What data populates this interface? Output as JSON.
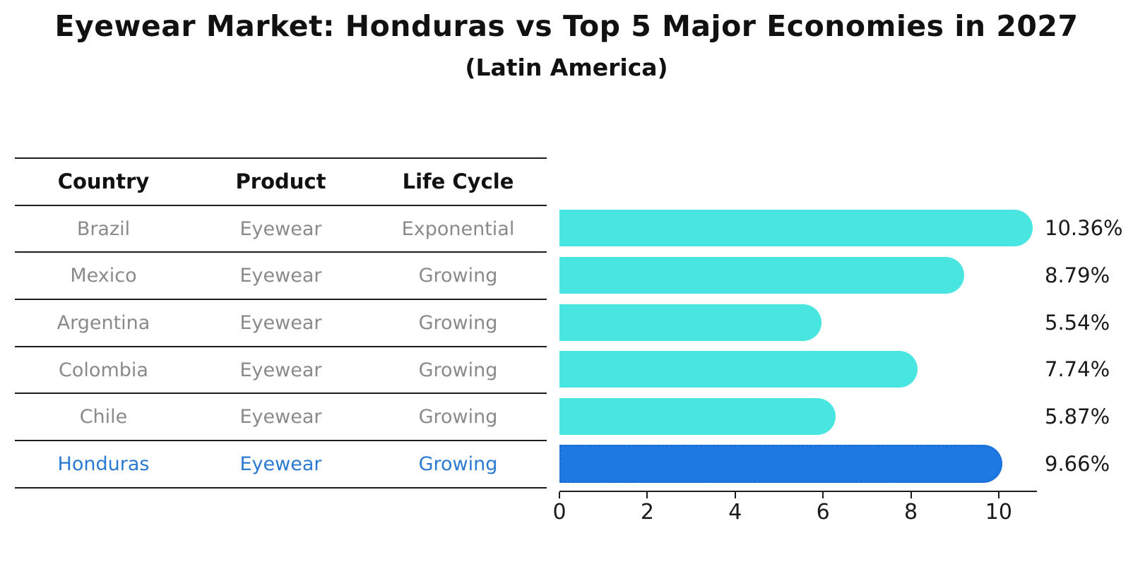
{
  "title": "Eyewear Market: Honduras vs Top 5 Major Economies in 2027",
  "subtitle": "(Latin America)",
  "table": {
    "headers": [
      "Country",
      "Product",
      "Life Cycle"
    ],
    "rows": [
      {
        "country": "Brazil",
        "product": "Eyewear",
        "life_cycle": "Exponential"
      },
      {
        "country": "Mexico",
        "product": "Eyewear",
        "life_cycle": "Growing"
      },
      {
        "country": "Argentina",
        "product": "Eyewear",
        "life_cycle": "Growing"
      },
      {
        "country": "Colombia",
        "product": "Eyewear",
        "life_cycle": "Growing"
      },
      {
        "country": "Chile",
        "product": "Eyewear",
        "life_cycle": "Growing"
      },
      {
        "country": "Honduras",
        "product": "Eyewear",
        "life_cycle": "Growing"
      }
    ],
    "highlight_row": "Honduras"
  },
  "chart_data": {
    "type": "bar",
    "orientation": "horizontal",
    "categories": [
      "Brazil",
      "Mexico",
      "Argentina",
      "Colombia",
      "Chile",
      "Honduras"
    ],
    "values": [
      10.36,
      8.79,
      5.54,
      7.74,
      5.87,
      9.66
    ],
    "value_labels": [
      "10.36%",
      "8.79%",
      "5.54%",
      "7.74%",
      "5.87%",
      "9.66%"
    ],
    "x_ticks": [
      "0",
      "2",
      "4",
      "6",
      "8",
      "10"
    ],
    "xlim": [
      0,
      10.87
    ],
    "grid": false,
    "legend": "none",
    "bar_color": "#48E5E1",
    "highlight_color": "#1E7AE2",
    "highlight_border_color": "#1B6FD6",
    "highlight_index": 5
  },
  "colors": {
    "background": "#FFFFFF",
    "title_text": "#111111",
    "table_header_text": "#111111",
    "table_row_text": "#8A8A8A",
    "highlight_text": "#2A7AD2",
    "axis_text": "#1A1A1A",
    "line": "#1C1C1C"
  }
}
